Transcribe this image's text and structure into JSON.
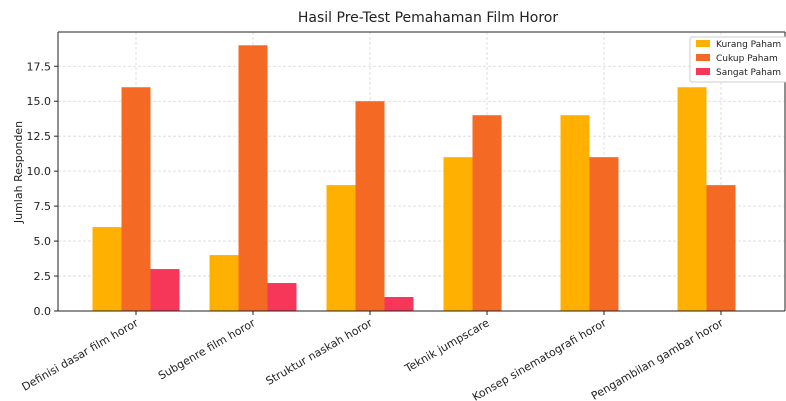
{
  "chart_data": {
    "type": "bar",
    "title": "Hasil Pre-Test Pemahaman Film Horor",
    "y_label": "Jumlah Responden",
    "categories": [
      "Definisi dasar film horor",
      "Subgenre film horor",
      "Struktur naskah horor",
      "Teknik jumpscare",
      "Konsep sinematografi horor",
      "Pengambilan gambar horor"
    ],
    "series": [
      {
        "name": "Kurang Paham",
        "color": "#ffb000",
        "values": [
          6,
          4,
          9,
          11,
          14,
          16
        ]
      },
      {
        "name": "Cukup Paham",
        "color": "#f46a25",
        "values": [
          16,
          19,
          15,
          14,
          11,
          9
        ]
      },
      {
        "name": "Sangat Paham",
        "color": "#f7375a",
        "values": [
          3,
          2,
          1,
          0,
          0,
          0
        ]
      }
    ],
    "ylim": [
      0,
      19.95
    ],
    "yticks": [
      {
        "value": 0,
        "label": "0.0"
      },
      {
        "value": 2.5,
        "label": "2.5"
      },
      {
        "value": 5,
        "label": "5.0"
      },
      {
        "value": 7.5,
        "label": "7.5"
      },
      {
        "value": 10,
        "label": "10.0"
      },
      {
        "value": 12.5,
        "label": "12.5"
      },
      {
        "value": 15,
        "label": "15.0"
      },
      {
        "value": 17.5,
        "label": "17.5"
      }
    ],
    "grid": true,
    "legend": "upper right"
  }
}
